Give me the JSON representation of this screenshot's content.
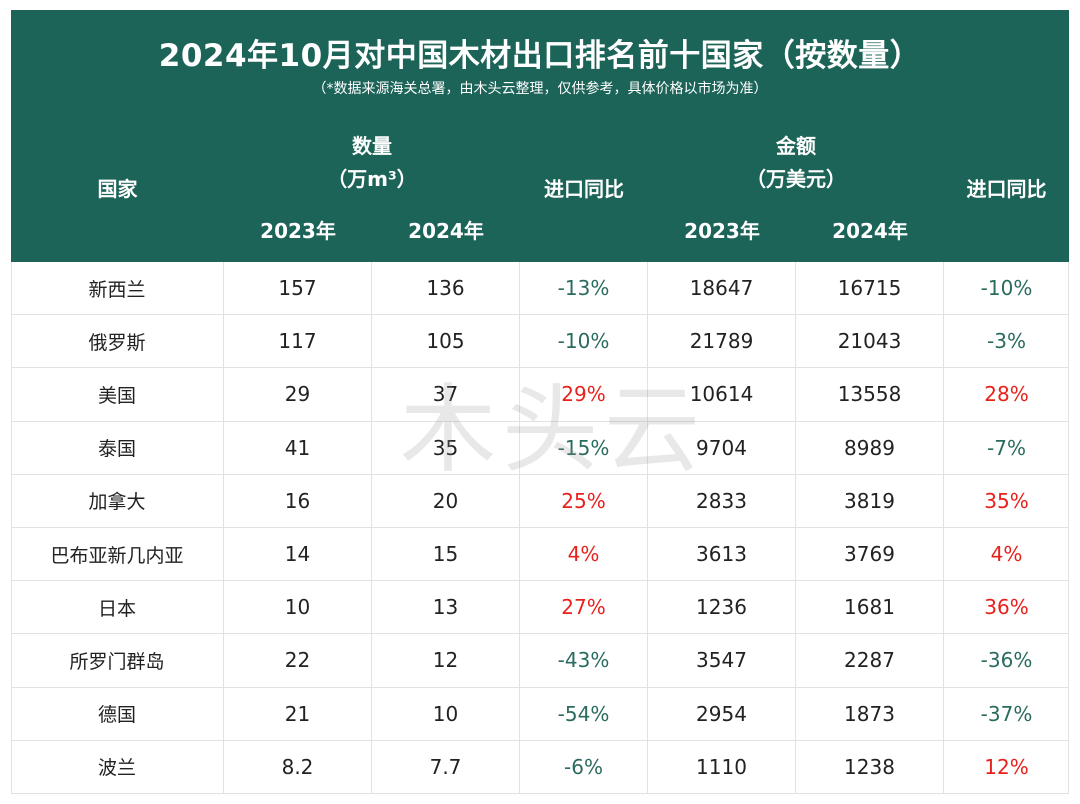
{
  "title": "2024年10月对中国木材出口排名前十国家（按数量）",
  "subtitle": "（*数据来源海关总署，由木头云整理，仅供参考，具体价格以市场为准）",
  "header": {
    "country": "国家",
    "quantity_title": "数量",
    "quantity_unit": "（万m³）",
    "amount_title": "金额",
    "amount_unit": "（万美元）",
    "yoy": "进口同比",
    "year_2023": "2023年",
    "year_2024": "2024年"
  },
  "watermark": "木头云",
  "colors": {
    "header_bg": "#1c6358",
    "positive": "#e8211c",
    "negative": "#2a6b5f"
  },
  "rows": [
    {
      "country": "新西兰",
      "qty_2023": "157",
      "qty_2024": "136",
      "qty_yoy": "-13%",
      "amt_2023": "18647",
      "amt_2024": "16715",
      "amt_yoy": "-10%"
    },
    {
      "country": "俄罗斯",
      "qty_2023": "117",
      "qty_2024": "105",
      "qty_yoy": "-10%",
      "amt_2023": "21789",
      "amt_2024": "21043",
      "amt_yoy": "-3%"
    },
    {
      "country": "美国",
      "qty_2023": "29",
      "qty_2024": "37",
      "qty_yoy": "29%",
      "amt_2023": "10614",
      "amt_2024": "13558",
      "amt_yoy": "28%"
    },
    {
      "country": "泰国",
      "qty_2023": "41",
      "qty_2024": "35",
      "qty_yoy": "-15%",
      "amt_2023": "9704",
      "amt_2024": "8989",
      "amt_yoy": "-7%"
    },
    {
      "country": "加拿大",
      "qty_2023": "16",
      "qty_2024": "20",
      "qty_yoy": "25%",
      "amt_2023": "2833",
      "amt_2024": "3819",
      "amt_yoy": "35%"
    },
    {
      "country": "巴布亚新几内亚",
      "qty_2023": "14",
      "qty_2024": "15",
      "qty_yoy": "4%",
      "amt_2023": "3613",
      "amt_2024": "3769",
      "amt_yoy": "4%"
    },
    {
      "country": "日本",
      "qty_2023": "10",
      "qty_2024": "13",
      "qty_yoy": "27%",
      "amt_2023": "1236",
      "amt_2024": "1681",
      "amt_yoy": "36%"
    },
    {
      "country": "所罗门群岛",
      "qty_2023": "22",
      "qty_2024": "12",
      "qty_yoy": "-43%",
      "amt_2023": "3547",
      "amt_2024": "2287",
      "amt_yoy": "-36%"
    },
    {
      "country": "德国",
      "qty_2023": "21",
      "qty_2024": "10",
      "qty_yoy": "-54%",
      "amt_2023": "2954",
      "amt_2024": "1873",
      "amt_yoy": "-37%"
    },
    {
      "country": "波兰",
      "qty_2023": "8.2",
      "qty_2024": "7.7",
      "qty_yoy": "-6%",
      "amt_2023": "1110",
      "amt_2024": "1238",
      "amt_yoy": "12%"
    }
  ]
}
